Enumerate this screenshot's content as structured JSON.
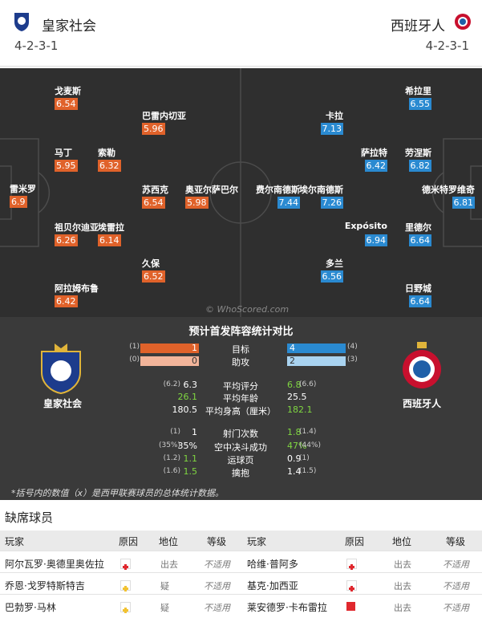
{
  "header": {
    "home": {
      "name": "皇家社会",
      "formation": "4-2-3-1"
    },
    "away": {
      "name": "西班牙人",
      "formation": "4-2-3-1"
    }
  },
  "pitch": {
    "watermark": "© WhoScored.com",
    "home_players": [
      {
        "name": "雷米罗",
        "rating": "6.9"
      },
      {
        "name": "戈麦斯",
        "rating": "6.54"
      },
      {
        "name": "巴雷内切亚",
        "rating": "5.96"
      },
      {
        "name": "马丁",
        "rating": "5.95"
      },
      {
        "name": "索勒",
        "rating": "6.32"
      },
      {
        "name": "苏西克",
        "rating": "6.54"
      },
      {
        "name": "奥亚尔萨巴尔",
        "rating": "5.98"
      },
      {
        "name": "祖贝尔迪亚",
        "rating": "6.26"
      },
      {
        "name": "埃雷拉",
        "rating": "6.14"
      },
      {
        "name": "久保",
        "rating": "6.52"
      },
      {
        "name": "阿拉姆布鲁",
        "rating": "6.42"
      }
    ],
    "away_players": [
      {
        "name": "希拉里",
        "rating": "6.55"
      },
      {
        "name": "卡拉",
        "rating": "7.13"
      },
      {
        "name": "萨拉特",
        "rating": "6.42"
      },
      {
        "name": "劳涅斯",
        "rating": "6.82"
      },
      {
        "name": "费尔南德斯",
        "rating": "7.44"
      },
      {
        "name": "埃尔南德斯",
        "rating": "7.26"
      },
      {
        "name": "德米特罗维奇",
        "rating": "6.81"
      },
      {
        "name": "Expósito",
        "rating": "6.94"
      },
      {
        "name": "里德尔",
        "rating": "6.64"
      },
      {
        "name": "多兰",
        "rating": "6.56"
      },
      {
        "name": "日野城",
        "rating": "6.64"
      }
    ]
  },
  "comparison": {
    "title": "预计首发阵容统计对比",
    "home_name": "皇家社会",
    "away_name": "西班牙人",
    "rows": [
      {
        "label": "目标",
        "home": "1",
        "home_season": "(1)",
        "away": "4",
        "away_season": "(4)",
        "bar": "strong"
      },
      {
        "label": "助攻",
        "home": "0",
        "home_season": "(0)",
        "away": "2",
        "away_season": "(3)",
        "bar": "light"
      },
      {
        "label": "平均评分",
        "home": "6.3",
        "home_season": "(6.2)",
        "away": "6.8",
        "away_season": "(6.6)",
        "better": "away"
      },
      {
        "label": "平均年龄",
        "home": "26.1",
        "away": "25.5",
        "better": "home"
      },
      {
        "label": "平均身高（厘米）",
        "home": "180.5",
        "away": "182.1",
        "better": "away"
      },
      {
        "label": "射门次数",
        "home": "1",
        "home_season": "(1)",
        "away": "1.8",
        "away_season": "(1.4)",
        "better": "away"
      },
      {
        "label": "空中决斗成功",
        "home": "35%",
        "home_season": "(35%)",
        "away": "47%",
        "away_season": "(44%)",
        "better": "away"
      },
      {
        "label": "运球页",
        "home": "1.1",
        "home_season": "(1.2)",
        "away": "0.9",
        "away_season": "(1)",
        "better": "home"
      },
      {
        "label": "擒抱",
        "home": "1.5",
        "home_season": "(1.6)",
        "away": "1.4",
        "away_season": "(1.5)",
        "better": "home"
      }
    ],
    "note": "*括号内的数值（x）是西甲联赛球员的总体统计数据。"
  },
  "absent": {
    "title": "缺席球员",
    "columns": [
      "玩家",
      "原因",
      "地位",
      "等级",
      "玩家",
      "原因",
      "地位",
      "等级"
    ],
    "rows": [
      {
        "home": {
          "player": "阿尔瓦罗·奥德里奥佐拉",
          "reason": "injury",
          "status": "出去",
          "level": "不适用"
        },
        "away": {
          "player": "哈维·普阿多",
          "reason": "injury",
          "status": "出去",
          "level": "不适用"
        }
      },
      {
        "home": {
          "player": "乔恩·戈罗特斯特吉",
          "reason": "doubt",
          "status": "疑",
          "level": "不适用"
        },
        "away": {
          "player": "基克·加西亚",
          "reason": "injury",
          "status": "出去",
          "level": "不适用"
        }
      },
      {
        "home": {
          "player": "巴勃罗·马林",
          "reason": "doubt",
          "status": "疑",
          "level": "不适用"
        },
        "away": {
          "player": "莱安德罗·卡布雷拉",
          "reason": "red-card",
          "status": "出去",
          "level": "不适用"
        }
      }
    ]
  }
}
